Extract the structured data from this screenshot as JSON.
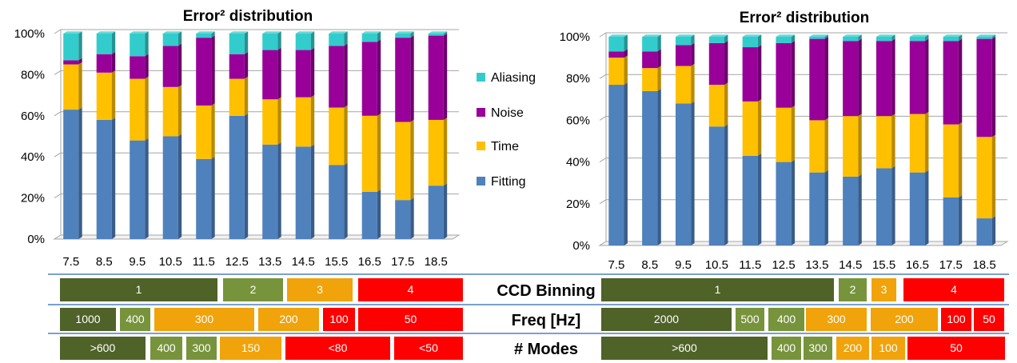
{
  "colors": {
    "Aliasing": "#33CCCC",
    "Noise": "#990099",
    "Time": "#FFC000",
    "Fitting": "#4F81BD",
    "dark_green": "#4F6228",
    "light_green": "#77933C",
    "orange": "#F0A30A",
    "red": "#FF0000",
    "separator": "#4F81BD"
  },
  "chart_data": [
    {
      "type": "bar",
      "stacked": "percent",
      "title": "Error² distribution",
      "categories": [
        "7.5",
        "8.5",
        "9.5",
        "10.5",
        "11.5",
        "12.5",
        "13.5",
        "14.5",
        "15.5",
        "16.5",
        "17.5",
        "18.5"
      ],
      "ylim": [
        0,
        100
      ],
      "yticks": [
        "0%",
        "20%",
        "40%",
        "60%",
        "80%",
        "100%"
      ],
      "grid": true,
      "legend": "right",
      "series": [
        {
          "name": "Fitting",
          "values": [
            63,
            58,
            48,
            50,
            39,
            60,
            46,
            45,
            36,
            23,
            19,
            26
          ]
        },
        {
          "name": "Time",
          "values": [
            22,
            23,
            30,
            24,
            26,
            18,
            22,
            24,
            28,
            37,
            38,
            32
          ]
        },
        {
          "name": "Noise",
          "values": [
            2,
            9,
            11,
            20,
            33,
            12,
            24,
            23,
            30,
            36,
            41,
            41
          ]
        },
        {
          "name": "Aliasing",
          "values": [
            13,
            10,
            11,
            6,
            2,
            10,
            8,
            8,
            6,
            4,
            2,
            1
          ]
        }
      ]
    },
    {
      "type": "bar",
      "stacked": "percent",
      "title": "Error² distribution",
      "categories": [
        "7.5",
        "8.5",
        "9.5",
        "10.5",
        "11.5",
        "12.5",
        "13.5",
        "14.5",
        "15.5",
        "16.5",
        "17.5",
        "18.5"
      ],
      "ylim": [
        0,
        100
      ],
      "yticks": [
        "0%",
        "20%",
        "40%",
        "60%",
        "80%",
        "100%"
      ],
      "grid": true,
      "legend": "none",
      "series": [
        {
          "name": "Fitting",
          "values": [
            77,
            74,
            68,
            57,
            43,
            40,
            35,
            33,
            37,
            35,
            23,
            13
          ]
        },
        {
          "name": "Time",
          "values": [
            13,
            11,
            18,
            20,
            26,
            26,
            25,
            29,
            25,
            28,
            35,
            39
          ]
        },
        {
          "name": "Noise",
          "values": [
            3,
            8,
            10,
            20,
            26,
            31,
            39,
            36,
            36,
            35,
            40,
            47
          ]
        },
        {
          "name": "Aliasing",
          "values": [
            7,
            7,
            4,
            3,
            5,
            3,
            1,
            2,
            2,
            2,
            2,
            1
          ]
        }
      ]
    }
  ],
  "tables": {
    "labels": [
      "CCD Binning",
      "Freq [Hz]",
      "# Modes"
    ],
    "left": [
      [
        {
          "text": "1",
          "color": "dark_green"
        },
        {
          "text": "2",
          "color": "light_green"
        },
        {
          "text": "3",
          "color": "orange"
        },
        {
          "text": "4",
          "color": "red"
        }
      ],
      [
        {
          "text": "1000",
          "color": "dark_green"
        },
        {
          "text": "400",
          "color": "light_green"
        },
        {
          "text": "300",
          "color": "orange"
        },
        {
          "text": "200",
          "color": "orange"
        },
        {
          "text": "100",
          "color": "red"
        },
        {
          "text": "50",
          "color": "red"
        }
      ],
      [
        {
          "text": ">600",
          "color": "dark_green"
        },
        {
          "text": "400",
          "color": "light_green"
        },
        {
          "text": "300",
          "color": "light_green"
        },
        {
          "text": "150",
          "color": "orange"
        },
        {
          "text": "<80",
          "color": "red"
        },
        {
          "text": "<50",
          "color": "red"
        }
      ]
    ],
    "right": [
      [
        {
          "text": "1",
          "color": "dark_green"
        },
        {
          "text": "2",
          "color": "light_green"
        },
        {
          "text": "3",
          "color": "orange"
        },
        {
          "text": "4",
          "color": "red"
        }
      ],
      [
        {
          "text": "2000",
          "color": "dark_green"
        },
        {
          "text": "500",
          "color": "light_green"
        },
        {
          "text": "400",
          "color": "light_green"
        },
        {
          "text": "300",
          "color": "orange"
        },
        {
          "text": "200",
          "color": "orange"
        },
        {
          "text": "100",
          "color": "red"
        },
        {
          "text": "50",
          "color": "red"
        }
      ],
      [
        {
          "text": ">600",
          "color": "dark_green"
        },
        {
          "text": "400",
          "color": "light_green"
        },
        {
          "text": "300",
          "color": "light_green"
        },
        {
          "text": "200",
          "color": "orange"
        },
        {
          "text": "100",
          "color": "orange"
        },
        {
          "text": "50",
          "color": "red"
        }
      ]
    ]
  }
}
